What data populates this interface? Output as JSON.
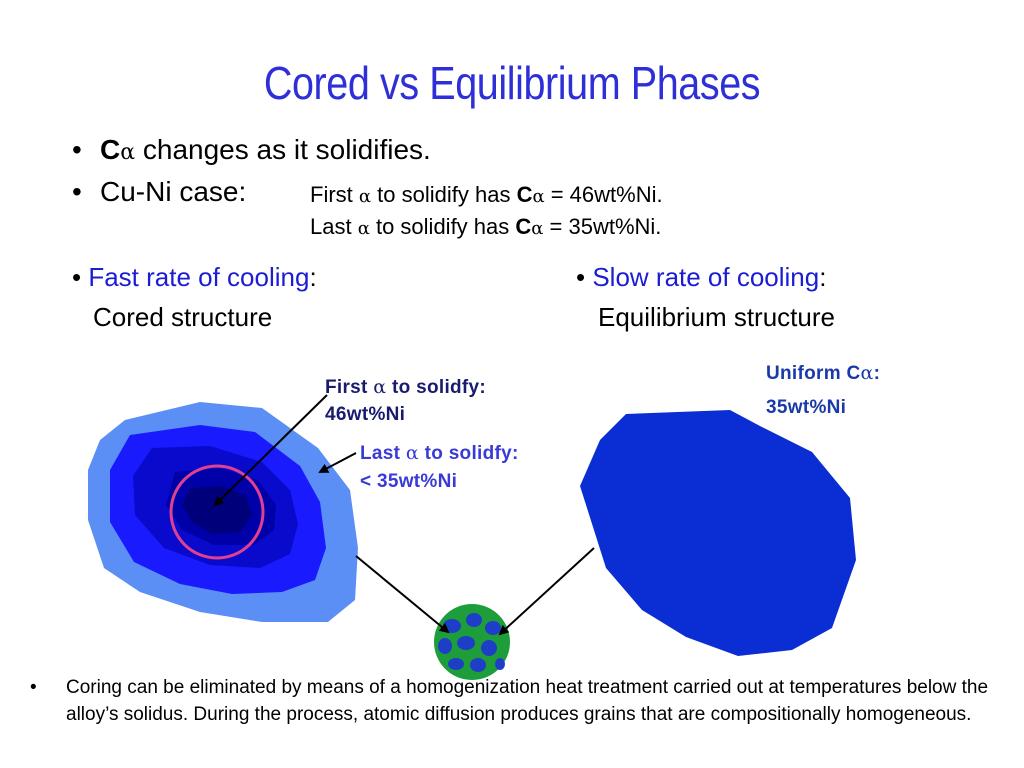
{
  "title": "Cored vs Equilibrium Phases",
  "bullets": {
    "b1_symbol": "C",
    "b1_greek": "α",
    "b1_text": " changes as it solidifies.",
    "b2_text": "Cu-Ni case:",
    "first_line": {
      "pre": "First ",
      "greek": "α",
      "mid": " to solidify has ",
      "symbol": "C",
      "sub": "α",
      "post": " = 46wt%Ni."
    },
    "last_line": {
      "pre": "Last  ",
      "greek": "α",
      "mid": " to solidify has ",
      "symbol": "C",
      "sub": "α",
      "post": " = 35wt%Ni."
    }
  },
  "fast": {
    "heading": "Fast rate of cooling",
    "colon": ":",
    "subtitle": "Cored structure"
  },
  "slow": {
    "heading": "Slow rate of cooling",
    "colon": ":",
    "subtitle": "Equilibrium structure"
  },
  "labels": {
    "first_pre": "First ",
    "first_greek": "α",
    "first_post": " to solidfy:",
    "first_value": "46wt%Ni",
    "last_pre": "Last ",
    "last_greek": "α",
    "last_post": "  to solidfy:",
    "last_value": "< 35wt%Ni",
    "uniform_pre": "Uniform C",
    "uniform_greek": "α",
    "uniform_post": ":",
    "uniform_value": "35wt%Ni"
  },
  "footnote": {
    "bullet": "•",
    "text": "Coring can be eliminated by means of a homogenization heat treatment carried out at temperatures below the alloy’s solidus. During the process, atomic diffusion produces grains that are compositionally homogeneous."
  },
  "colors": {
    "title": "#2f2fd8",
    "heading_blue": "#1c1cd4",
    "grain_outer": "#5b8ff5",
    "grain_mid": "#1a1aff",
    "grain_inner": "#0a0acc",
    "grain_core": "#000090",
    "equilibrium_grain": "#0a2ed4",
    "pink_circle": "#e0408f",
    "homogenized_green": "#1d9e3a"
  }
}
